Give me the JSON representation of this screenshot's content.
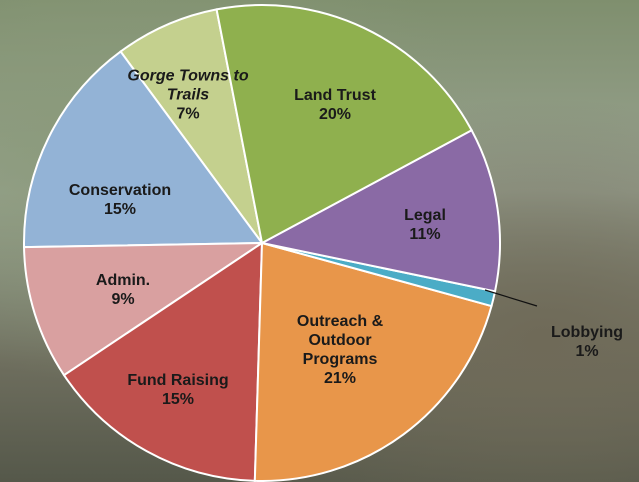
{
  "chart_data": {
    "type": "pie",
    "categories": [
      "Land Trust",
      "Legal",
      "Lobbying",
      "Outreach & Outdoor Programs",
      "Fund Raising",
      "Admin.",
      "Conservation",
      "Gorge Towns to Trails"
    ],
    "values": [
      20,
      11,
      1,
      21,
      15,
      9,
      15,
      7
    ],
    "value_labels": [
      "20%",
      "11%",
      "1%",
      "21%",
      "15%",
      "9%",
      "15%",
      "7%"
    ],
    "colors": [
      "#8fb04e",
      "#8a6aa5",
      "#4bacc6",
      "#e8964a",
      "#c0504d",
      "#d9a0a0",
      "#93b3d6",
      "#c4d08e"
    ]
  }
}
